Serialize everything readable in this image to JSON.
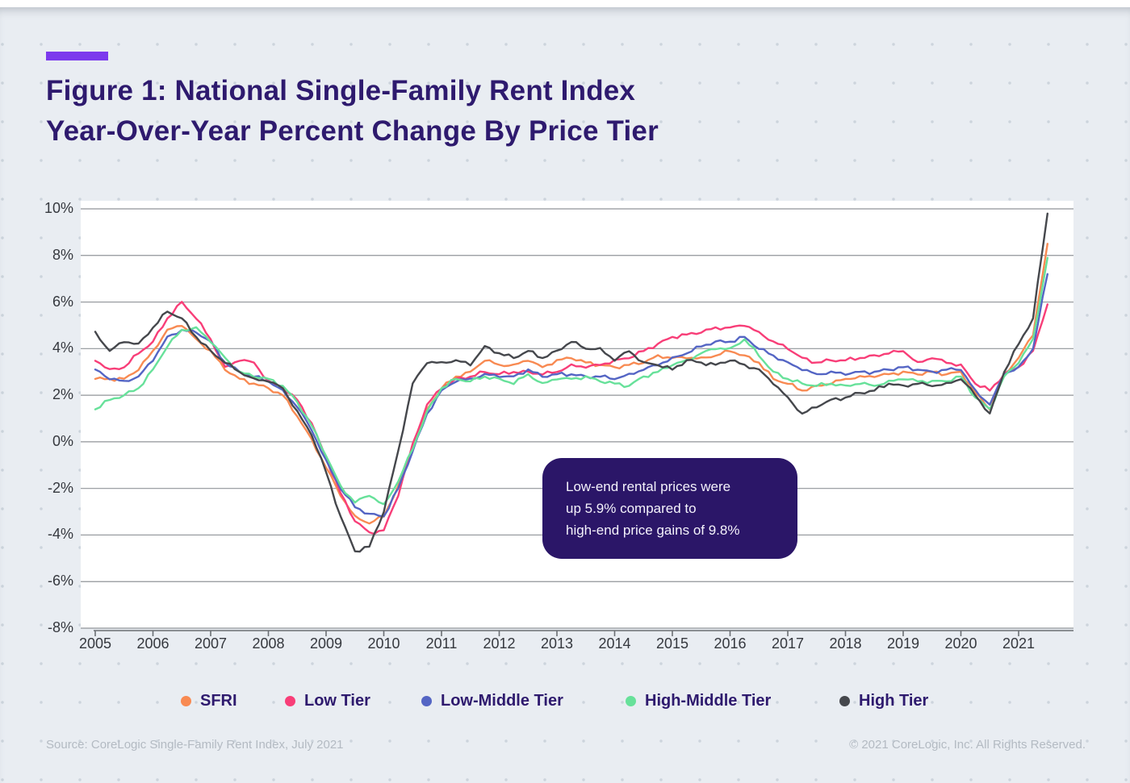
{
  "header": {
    "title_line1": "Figure 1: National Single-Family Rent Index",
    "title_line2": "Year-Over-Year Percent Change By Price Tier"
  },
  "annotation": {
    "line1": "Low-end rental prices were",
    "line2": "up 5.9% compared to",
    "line3": "high-end price gains of 9.8%"
  },
  "footer": {
    "source": "Source: CoreLogic Single-Family Rent Index, July 2021",
    "copyright": "© 2021 CoreLogic, Inc. All Rights Reserved."
  },
  "colors": {
    "accent_purple": "#7C3AED",
    "title_indigo": "#2E1A6E",
    "annotation_bg": "#2B1668",
    "panel_bg": "#E9EDF2",
    "gridline": "#909499",
    "axis": "#6A6E73"
  },
  "chart_data": {
    "type": "line",
    "title": "National Single-Family Rent Index Year-Over-Year Percent Change By Price Tier",
    "x_start": 2005,
    "x_step": 0.25,
    "x_end": 2021.5,
    "x_tick_labels": [
      "2005",
      "2006",
      "2007",
      "2008",
      "2009",
      "2010",
      "2011",
      "2012",
      "2013",
      "2014",
      "2015",
      "2016",
      "2017",
      "2018",
      "2019",
      "2020",
      "2021"
    ],
    "y_tick_labels": [
      "10%",
      "8%",
      "6%",
      "4%",
      "2%",
      "0%",
      "-2%",
      "-4%",
      "-6%",
      "-8%"
    ],
    "y_tick_values": [
      10,
      8,
      6,
      4,
      2,
      0,
      -2,
      -4,
      -6,
      -8
    ],
    "ylim": [
      -8,
      10
    ],
    "grid": true,
    "legend_position": "bottom",
    "series": [
      {
        "name": "SFRI",
        "color": "#F88A52",
        "values": [
          2.7,
          2.7,
          2.7,
          3.1,
          3.9,
          4.8,
          5.0,
          4.4,
          3.9,
          3.1,
          2.7,
          2.5,
          2.3,
          2.0,
          1.1,
          0.1,
          -1.1,
          -2.3,
          -3.2,
          -3.5,
          -3.2,
          -1.9,
          -0.3,
          1.4,
          2.3,
          2.8,
          3.0,
          3.5,
          3.3,
          3.3,
          3.5,
          3.2,
          3.5,
          3.6,
          3.4,
          3.3,
          3.2,
          3.3,
          3.4,
          3.7,
          3.6,
          3.6,
          3.6,
          3.7,
          3.9,
          3.7,
          3.4,
          2.7,
          2.5,
          2.2,
          2.4,
          2.5,
          2.7,
          2.8,
          2.8,
          2.9,
          3.0,
          2.9,
          3.0,
          2.9,
          3.0,
          2.1,
          1.4,
          2.9,
          3.6,
          4.6,
          8.5
        ]
      },
      {
        "name": "Low Tier",
        "color": "#F83E78",
        "values": [
          3.5,
          3.1,
          3.2,
          3.8,
          4.3,
          5.3,
          6.0,
          5.3,
          4.4,
          3.2,
          3.5,
          3.4,
          2.6,
          2.3,
          1.8,
          0.8,
          -0.7,
          -2.2,
          -3.4,
          -3.9,
          -3.8,
          -2.3,
          -0.1,
          1.6,
          2.3,
          2.7,
          2.8,
          3.0,
          2.9,
          3.0,
          3.0,
          2.9,
          3.0,
          3.3,
          3.2,
          3.3,
          3.5,
          3.6,
          3.9,
          4.2,
          4.5,
          4.6,
          4.7,
          4.9,
          4.9,
          5.0,
          4.7,
          4.3,
          4.0,
          3.6,
          3.4,
          3.5,
          3.5,
          3.6,
          3.7,
          3.8,
          3.9,
          3.4,
          3.6,
          3.4,
          3.3,
          2.5,
          2.2,
          2.9,
          3.2,
          3.9,
          5.9
        ]
      },
      {
        "name": "Low-Middle Tier",
        "color": "#5465C4",
        "values": [
          3.1,
          2.7,
          2.6,
          2.8,
          3.5,
          4.5,
          4.8,
          4.7,
          4.3,
          3.4,
          3.0,
          2.8,
          2.6,
          2.2,
          1.5,
          0.5,
          -0.8,
          -2.0,
          -2.8,
          -3.1,
          -3.2,
          -2.0,
          -0.4,
          1.2,
          2.2,
          2.6,
          2.7,
          2.9,
          2.8,
          2.8,
          3.1,
          2.8,
          2.9,
          2.9,
          2.8,
          2.8,
          2.7,
          2.9,
          3.1,
          3.3,
          3.6,
          3.8,
          4.1,
          4.3,
          4.3,
          4.5,
          4.0,
          3.7,
          3.4,
          3.1,
          2.9,
          3.0,
          2.9,
          3.0,
          3.0,
          3.1,
          3.2,
          3.1,
          3.0,
          3.1,
          3.1,
          2.2,
          1.6,
          2.9,
          3.2,
          4.0,
          7.2
        ]
      },
      {
        "name": "High-Middle Tier",
        "color": "#67E19A",
        "values": [
          1.4,
          1.8,
          2.0,
          2.3,
          3.1,
          4.1,
          4.8,
          4.9,
          4.3,
          3.6,
          3.0,
          2.8,
          2.7,
          2.4,
          1.7,
          0.7,
          -0.6,
          -1.9,
          -2.6,
          -2.3,
          -2.7,
          -1.7,
          -0.3,
          1.3,
          2.3,
          2.7,
          2.6,
          2.8,
          2.7,
          2.5,
          2.9,
          2.5,
          2.7,
          2.7,
          2.8,
          2.6,
          2.5,
          2.4,
          2.8,
          3.0,
          3.3,
          3.5,
          3.8,
          4.0,
          4.0,
          4.4,
          3.7,
          3.0,
          2.7,
          2.5,
          2.4,
          2.5,
          2.4,
          2.5,
          2.4,
          2.6,
          2.7,
          2.6,
          2.6,
          2.6,
          2.8,
          1.9,
          1.4,
          2.8,
          3.4,
          4.4,
          7.9
        ]
      },
      {
        "name": "High Tier",
        "color": "#45474C",
        "values": [
          4.7,
          3.9,
          4.3,
          4.2,
          4.9,
          5.6,
          5.3,
          4.5,
          3.9,
          3.4,
          3.0,
          2.7,
          2.6,
          2.3,
          1.3,
          0.3,
          -1.3,
          -3.2,
          -4.7,
          -4.5,
          -3.0,
          -0.4,
          2.5,
          3.4,
          3.4,
          3.5,
          3.3,
          4.1,
          3.8,
          3.6,
          3.9,
          3.6,
          3.9,
          4.3,
          4.0,
          4.0,
          3.5,
          3.9,
          3.4,
          3.3,
          3.1,
          3.5,
          3.4,
          3.3,
          3.5,
          3.3,
          3.1,
          2.5,
          1.9,
          1.2,
          1.5,
          1.8,
          1.9,
          2.1,
          2.2,
          2.5,
          2.4,
          2.5,
          2.4,
          2.5,
          2.7,
          2.0,
          1.2,
          3.0,
          4.2,
          5.3,
          9.8
        ]
      }
    ]
  }
}
